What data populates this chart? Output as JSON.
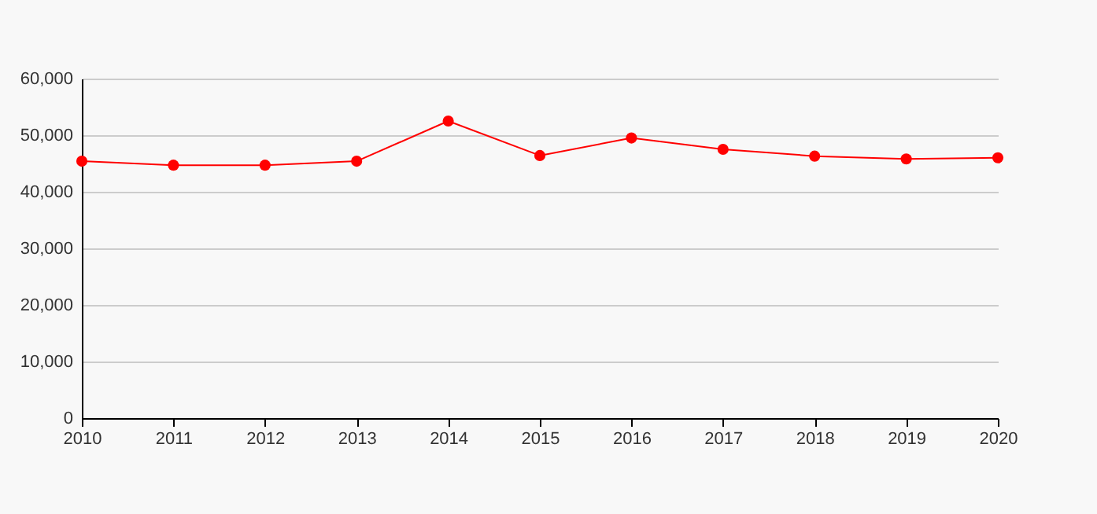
{
  "chart_data": {
    "type": "line",
    "x": [
      2010,
      2011,
      2012,
      2013,
      2014,
      2015,
      2016,
      2017,
      2018,
      2019,
      2020
    ],
    "series": [
      {
        "color": "#ff0000",
        "values": [
          45400,
          44700,
          44700,
          45400,
          52500,
          46400,
          49500,
          47500,
          46300,
          45800,
          46000
        ]
      }
    ],
    "xlim": [
      2010,
      2020
    ],
    "xticks": [
      2010,
      2011,
      2012,
      2013,
      2014,
      2015,
      2016,
      2017,
      2018,
      2019,
      2020
    ],
    "ylim": [
      0,
      60000
    ],
    "yticks": [
      0,
      {
        "value": 10000,
        "label": "10,000"
      },
      {
        "value": 20000,
        "label": "20,000"
      },
      {
        "value": 30000,
        "label": "30,000"
      },
      {
        "value": 40000,
        "label": "40,000"
      },
      {
        "value": 50000,
        "label": "50,000"
      },
      {
        "value": 60000,
        "label": "60,000"
      }
    ],
    "grid": "y",
    "marker": "circle",
    "line_style": "solid"
  }
}
